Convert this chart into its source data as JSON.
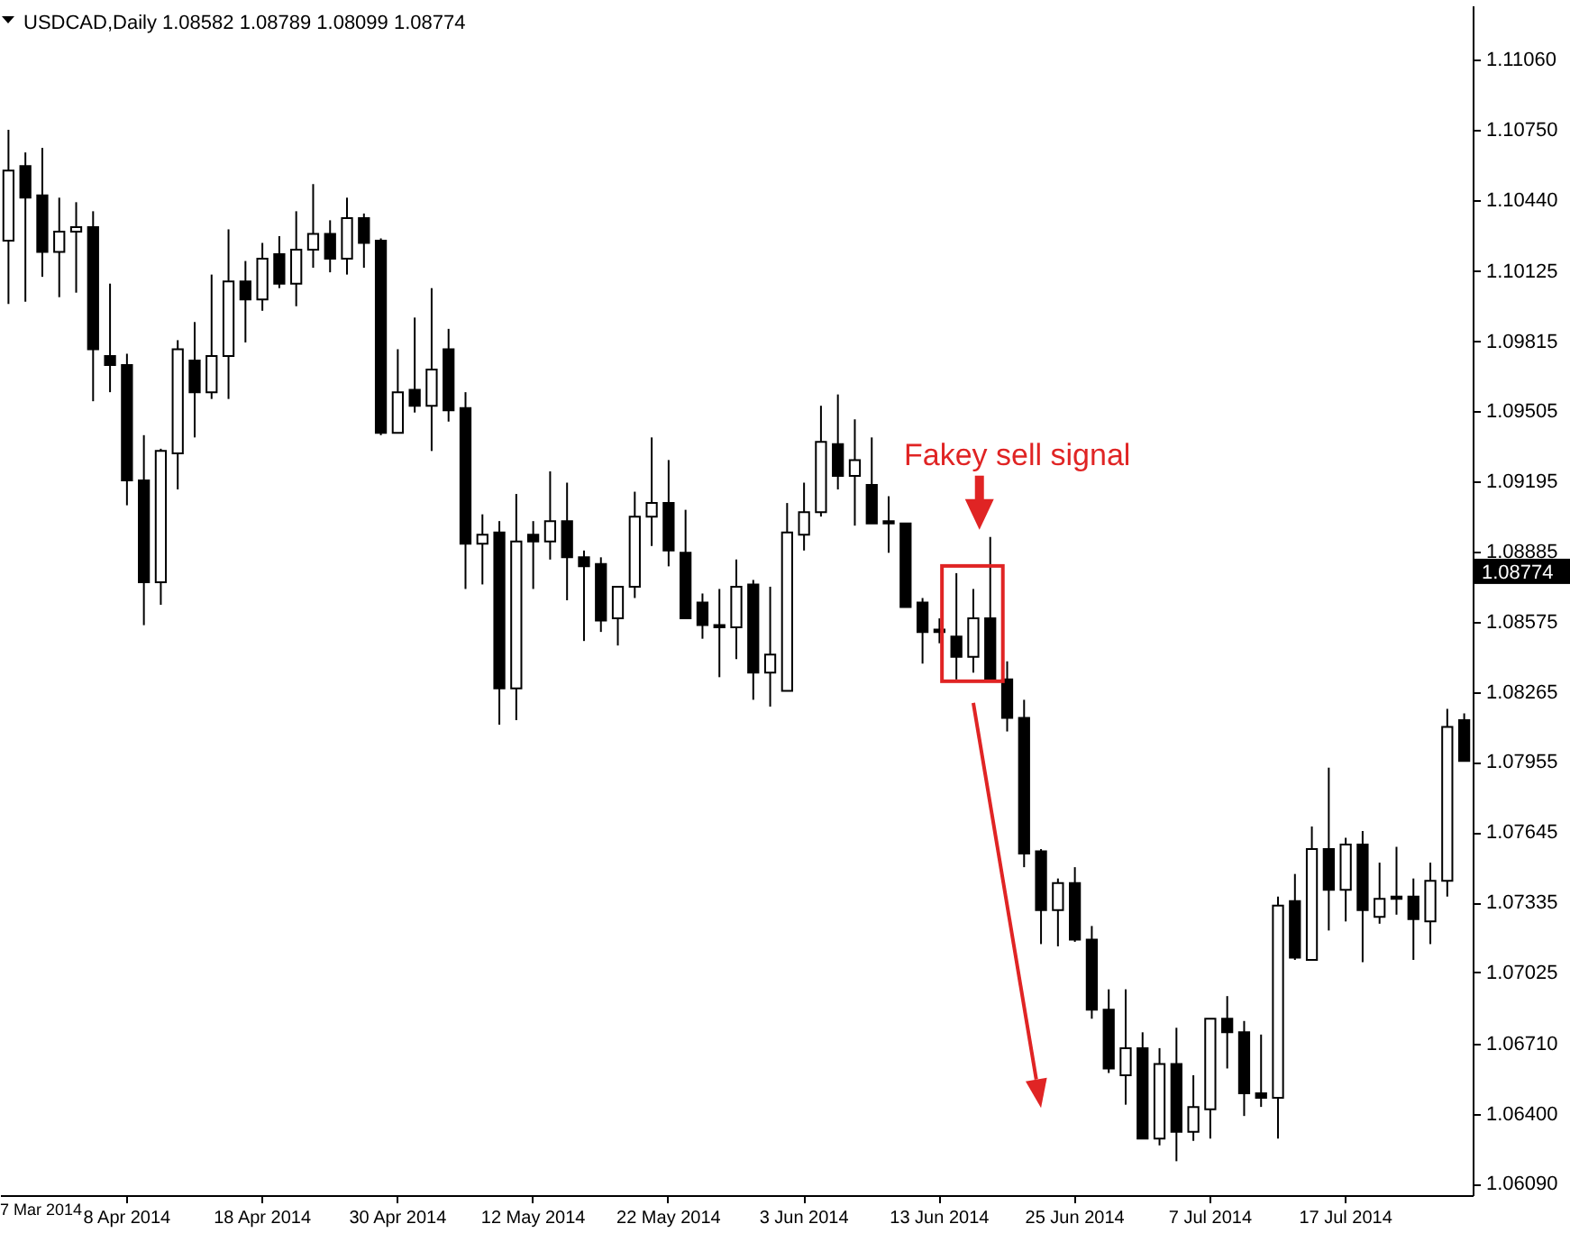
{
  "chart_data": {
    "type": "candlestick",
    "title": "USDCAD,Daily 1.08582 1.08789 1.08099 1.08774",
    "categories": [
      null,
      null,
      null,
      null,
      null,
      null,
      null,
      "8 Apr 2014",
      null,
      null,
      null,
      null,
      null,
      null,
      null,
      "18 Apr 2014",
      null,
      null,
      null,
      null,
      null,
      null,
      null,
      "30 Apr 2014",
      null,
      null,
      null,
      null,
      null,
      null,
      null,
      "12 May 2014",
      null,
      null,
      null,
      null,
      null,
      null,
      null,
      "22 May 2014",
      null,
      null,
      null,
      null,
      null,
      null,
      null,
      "3 Jun 2014",
      null,
      null,
      null,
      null,
      null,
      null,
      null,
      "13 Jun 2014",
      null,
      null,
      null,
      null,
      null,
      null,
      null,
      "25 Jun 2014",
      null,
      null,
      null,
      null,
      null,
      null,
      null,
      "7 Jul 2014",
      null,
      null,
      null,
      null,
      null,
      null,
      null,
      "17 Jul 2014",
      null,
      null,
      null,
      null,
      null,
      null,
      null
    ],
    "ohlc": [
      [
        1.1026,
        1.1075,
        1.0998,
        1.1057
      ],
      [
        1.1059,
        1.1065,
        1.0999,
        1.1045
      ],
      [
        1.1046,
        1.1067,
        1.101,
        1.1021
      ],
      [
        1.1021,
        1.1045,
        1.1001,
        1.103
      ],
      [
        1.103,
        1.1043,
        1.1003,
        1.1032
      ],
      [
        1.1032,
        1.1039,
        1.0955,
        1.0978
      ],
      [
        1.0975,
        1.1007,
        1.0959,
        1.0971
      ],
      [
        1.0971,
        1.0976,
        1.0909,
        1.092
      ],
      [
        1.092,
        1.094,
        1.0856,
        1.0875
      ],
      [
        1.0875,
        1.0934,
        1.0865,
        1.0933
      ],
      [
        1.0932,
        1.0982,
        1.0916,
        1.0978
      ],
      [
        1.0973,
        1.099,
        1.0939,
        1.0959
      ],
      [
        1.0959,
        1.1011,
        1.0956,
        1.0975
      ],
      [
        1.0975,
        1.1031,
        1.0956,
        1.1008
      ],
      [
        1.1008,
        1.1017,
        1.0981,
        1.1
      ],
      [
        1.1,
        1.1025,
        1.0995,
        1.1018
      ],
      [
        1.102,
        1.1028,
        1.1005,
        1.1007
      ],
      [
        1.1007,
        1.1039,
        1.0997,
        1.1022
      ],
      [
        1.1022,
        1.1051,
        1.1014,
        1.1029
      ],
      [
        1.1029,
        1.1035,
        1.1012,
        1.1018
      ],
      [
        1.1018,
        1.1045,
        1.1011,
        1.1036
      ],
      [
        1.1036,
        1.1038,
        1.1014,
        1.1025
      ],
      [
        1.1026,
        1.1027,
        1.094,
        1.0941
      ],
      [
        1.0941,
        1.0978,
        1.0941,
        1.0959
      ],
      [
        1.096,
        1.0992,
        1.095,
        1.0953
      ],
      [
        1.0953,
        1.1005,
        1.0933,
        1.0969
      ],
      [
        1.0978,
        1.0987,
        1.0946,
        1.0951
      ],
      [
        1.0952,
        1.0959,
        1.0872,
        1.0892
      ],
      [
        1.0892,
        1.0905,
        1.0874,
        1.0896
      ],
      [
        1.0897,
        1.0902,
        1.0812,
        1.0828
      ],
      [
        1.0828,
        1.0914,
        1.0814,
        1.0893
      ],
      [
        1.0896,
        1.0902,
        1.0872,
        1.0893
      ],
      [
        1.0893,
        1.0924,
        1.0885,
        1.0902
      ],
      [
        1.0902,
        1.0919,
        1.0867,
        1.0886
      ],
      [
        1.0886,
        1.0889,
        1.0849,
        1.0882
      ],
      [
        1.0883,
        1.0886,
        1.0853,
        1.0858
      ],
      [
        1.0859,
        1.0873,
        1.0847,
        1.0873
      ],
      [
        1.0873,
        1.0915,
        1.0868,
        1.0904
      ],
      [
        1.0904,
        1.0939,
        1.0891,
        1.091
      ],
      [
        1.091,
        1.0929,
        1.0882,
        1.0889
      ],
      [
        1.0888,
        1.0907,
        1.0859,
        1.0859
      ],
      [
        1.0866,
        1.087,
        1.085,
        1.0856
      ],
      [
        1.0856,
        1.0872,
        1.0833,
        1.0855
      ],
      [
        1.0855,
        1.0885,
        1.0841,
        1.0873
      ],
      [
        1.0874,
        1.0876,
        1.0823,
        1.0835
      ],
      [
        1.0835,
        1.0873,
        1.082,
        1.0843
      ],
      [
        1.0827,
        1.091,
        1.0827,
        1.0897
      ],
      [
        1.0896,
        1.0919,
        1.0889,
        1.0906
      ],
      [
        1.0906,
        1.0953,
        1.0904,
        1.0937
      ],
      [
        1.0936,
        1.0958,
        1.0916,
        1.0922
      ],
      [
        1.0922,
        1.0947,
        1.09,
        1.0929
      ],
      [
        1.0918,
        1.0939,
        1.0901,
        1.0901
      ],
      [
        1.0902,
        1.0913,
        1.0888,
        1.0901
      ],
      [
        1.0901,
        1.0901,
        1.0864,
        1.0864
      ],
      [
        1.0866,
        1.0868,
        1.0839,
        1.0853
      ],
      [
        1.0854,
        1.0859,
        1.0848,
        1.0853
      ],
      [
        1.0851,
        1.0879,
        1.0832,
        1.0842
      ],
      [
        1.0842,
        1.0872,
        1.0835,
        1.0859
      ],
      [
        1.0859,
        1.0895,
        1.0832,
        1.0832
      ],
      [
        1.0832,
        1.084,
        1.0809,
        1.0815
      ],
      [
        1.0815,
        1.0823,
        1.0749,
        1.0755
      ],
      [
        1.0756,
        1.0757,
        1.0715,
        1.073
      ],
      [
        1.073,
        1.0744,
        1.0714,
        1.0742
      ],
      [
        1.0742,
        1.0749,
        1.0716,
        1.0717
      ],
      [
        1.0717,
        1.0723,
        1.0682,
        1.0686
      ],
      [
        1.0686,
        1.0695,
        1.0658,
        1.066
      ],
      [
        1.0657,
        1.0695,
        1.0644,
        1.0669
      ],
      [
        1.0669,
        1.0676,
        1.0629,
        1.0629
      ],
      [
        1.0629,
        1.0669,
        1.0626,
        1.0662
      ],
      [
        1.0662,
        1.0678,
        1.0619,
        1.0632
      ],
      [
        1.0632,
        1.0657,
        1.0628,
        1.0643
      ],
      [
        1.0642,
        1.0682,
        1.0629,
        1.0682
      ],
      [
        1.0682,
        1.0692,
        1.066,
        1.0676
      ],
      [
        1.0676,
        1.0681,
        1.0639,
        1.0649
      ],
      [
        1.0649,
        1.0675,
        1.0643,
        1.0647
      ],
      [
        1.0647,
        1.0736,
        1.0629,
        1.0732
      ],
      [
        1.0734,
        1.0746,
        1.0708,
        1.0709
      ],
      [
        1.0708,
        1.0767,
        1.0708,
        1.0757
      ],
      [
        1.0757,
        1.0793,
        1.0721,
        1.0739
      ],
      [
        1.0739,
        1.0762,
        1.0725,
        1.0759
      ],
      [
        1.0759,
        1.0765,
        1.0707,
        1.073
      ],
      [
        1.0727,
        1.0751,
        1.0724,
        1.0735
      ],
      [
        1.0736,
        1.0758,
        1.0728,
        1.0735
      ],
      [
        1.0736,
        1.0744,
        1.0708,
        1.0726
      ],
      [
        1.0725,
        1.0751,
        1.0715,
        1.0743
      ],
      [
        1.0743,
        1.0819,
        1.0736,
        1.0811
      ],
      [
        1.0814,
        1.0817,
        1.0796,
        1.0796
      ]
    ],
    "ylim": [
      1.0604,
      1.113
    ],
    "yticks": [
      {
        "value": 1.0609,
        "label": "1.06090"
      },
      {
        "value": 1.064,
        "label": "1.06400"
      },
      {
        "value": 1.0671,
        "label": "1.06710"
      },
      {
        "value": 1.07025,
        "label": "1.07025"
      },
      {
        "value": 1.07335,
        "label": "1.07335"
      },
      {
        "value": 1.07645,
        "label": "1.07645"
      },
      {
        "value": 1.07955,
        "label": "1.07955"
      },
      {
        "value": 1.08265,
        "label": "1.08265"
      },
      {
        "value": 1.08575,
        "label": "1.08575"
      },
      {
        "value": 1.08885,
        "label": "1.08885"
      },
      {
        "value": 1.09195,
        "label": "1.09195"
      },
      {
        "value": 1.09505,
        "label": "1.09505"
      },
      {
        "value": 1.09815,
        "label": "1.09815"
      },
      {
        "value": 1.10125,
        "label": "1.10125"
      },
      {
        "value": 1.1044,
        "label": "1.10440"
      },
      {
        "value": 1.1075,
        "label": "1.10750"
      },
      {
        "value": 1.1106,
        "label": "1.11060"
      }
    ],
    "annotations": [
      "Fakey sell signal",
      "7 Mar 2014",
      "1.08774"
    ]
  }
}
